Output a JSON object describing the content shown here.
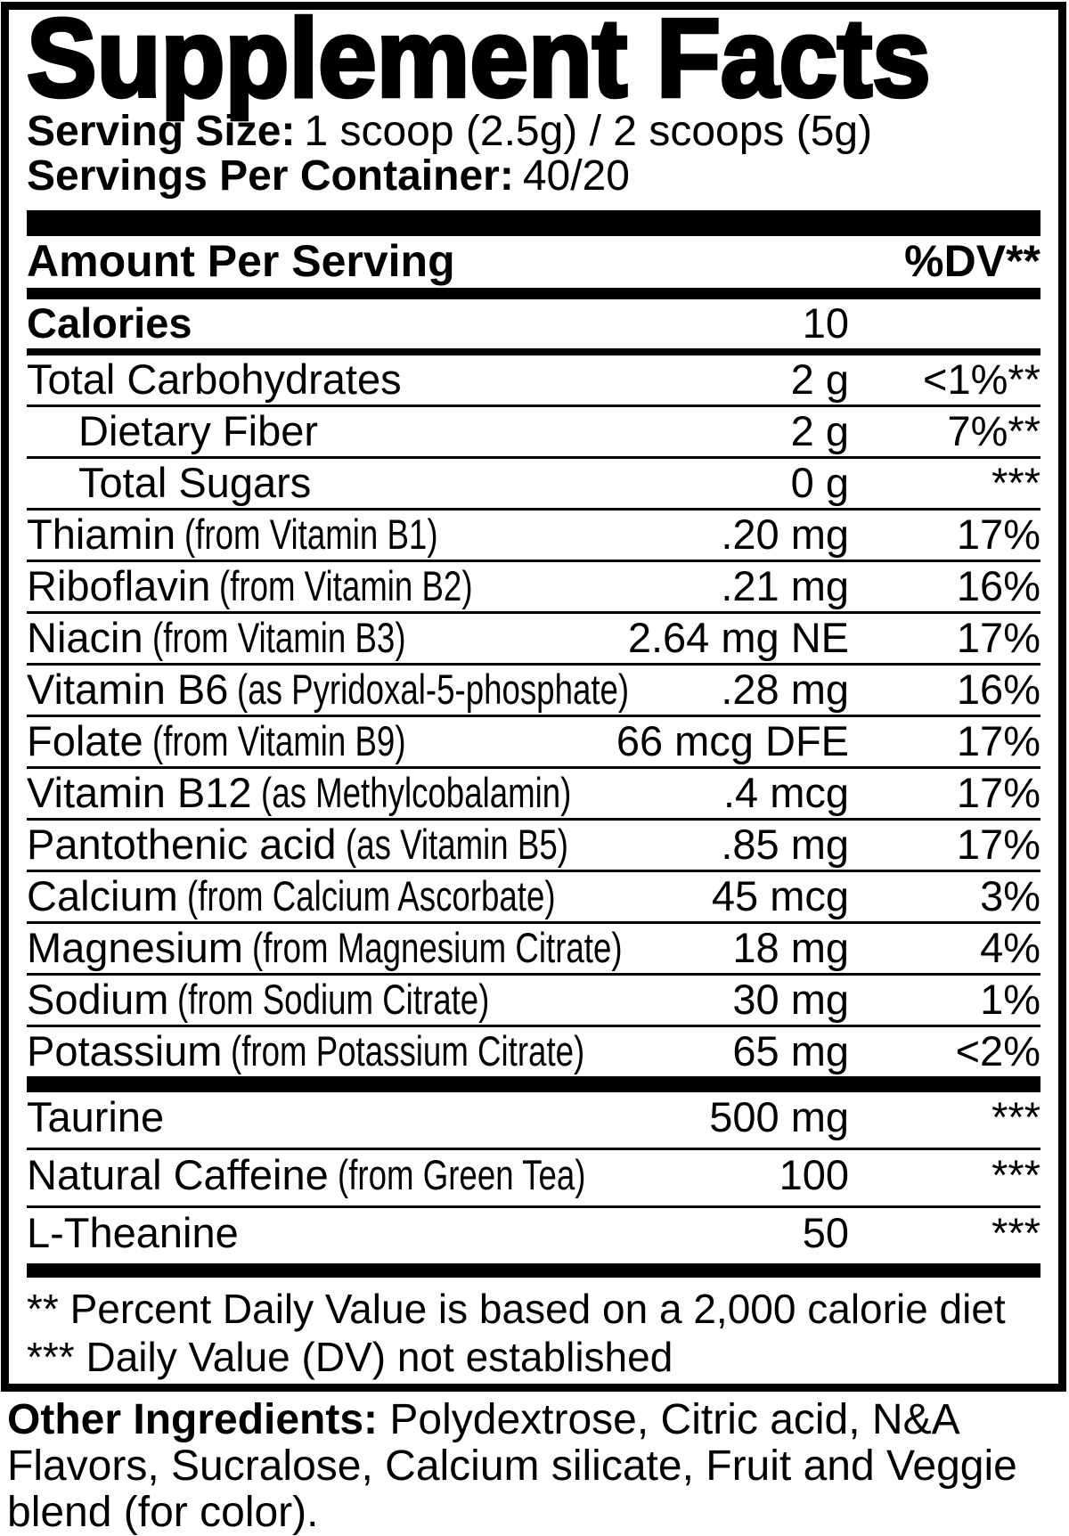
{
  "colors": {
    "text": "#000000",
    "background": "#ffffff"
  },
  "title": "Supplement Facts",
  "serving": {
    "size_label": "Serving Size:",
    "size_value": "1 scoop (2.5g) / 2 scoops (5g)",
    "container_label": "Servings Per Container:",
    "container_value": "40/20"
  },
  "table_header": {
    "amount": "Amount Per Serving",
    "dv": "%DV**"
  },
  "main_rows": [
    {
      "name": "Calories",
      "paren": "",
      "amount": "10",
      "dv": "",
      "bold": true,
      "thickline": true
    },
    {
      "name": "Total Carbohydrates",
      "paren": "",
      "amount": "2 g",
      "dv": "<1%**"
    },
    {
      "name": "Dietary Fiber",
      "paren": "",
      "amount": "2 g",
      "dv": "7%**",
      "indent": true
    },
    {
      "name": "Total Sugars",
      "paren": "",
      "amount": "0 g",
      "dv": "***",
      "indent": true
    },
    {
      "name": "Thiamin",
      "paren": "(from Vitamin B1)",
      "amount": ".20 mg",
      "dv": "17%"
    },
    {
      "name": "Riboflavin",
      "paren": "(from Vitamin B2)",
      "amount": ".21 mg",
      "dv": "16%"
    },
    {
      "name": "Niacin",
      "paren": "(from Vitamin B3)",
      "amount": "2.64 mg NE",
      "dv": "17%"
    },
    {
      "name": "Vitamin B6",
      "paren": "(as Pyridoxal-5-phosphate)",
      "amount": ".28 mg",
      "dv": "16%"
    },
    {
      "name": "Folate",
      "paren": "(from Vitamin B9)",
      "amount": "66 mcg DFE",
      "dv": "17%"
    },
    {
      "name": "Vitamin B12",
      "paren": "(as Methylcobalamin)",
      "amount": ".4 mcg",
      "dv": "17%"
    },
    {
      "name": "Pantothenic acid",
      "paren": "(as Vitamin B5)",
      "amount": ".85 mg",
      "dv": "17%"
    },
    {
      "name": "Calcium",
      "paren": "(from Calcium Ascorbate)",
      "amount": "45 mcg",
      "dv": "3%"
    },
    {
      "name": "Magnesium",
      "paren": "(from Magnesium Citrate)",
      "amount": "18 mg",
      "dv": "4%"
    },
    {
      "name": "Sodium",
      "paren": "(from Sodium Citrate)",
      "amount": "30 mg",
      "dv": "1%"
    },
    {
      "name": "Potassium",
      "paren": "(from Potassium Citrate)",
      "amount": "65 mg",
      "dv": "<2%",
      "noline": true
    }
  ],
  "extra_rows": [
    {
      "name": "Taurine",
      "paren": "",
      "amount": "500 mg",
      "dv": "***"
    },
    {
      "name": "Natural Caffeine",
      "paren": "(from Green Tea)",
      "amount": "100",
      "dv": "***"
    },
    {
      "name": "L-Theanine",
      "paren": "",
      "amount": "50",
      "dv": "***",
      "noline": true
    }
  ],
  "footnotes": [
    "** Percent Daily Value is based on a 2,000 calorie diet",
    "*** Daily Value (DV) not established"
  ],
  "other_ingredients": {
    "label": "Other Ingredients:",
    "text": "Polydextrose, Citric acid, N&A Flavors, Sucralose, Calcium silicate, Fruit and Veggie blend (for color)."
  }
}
